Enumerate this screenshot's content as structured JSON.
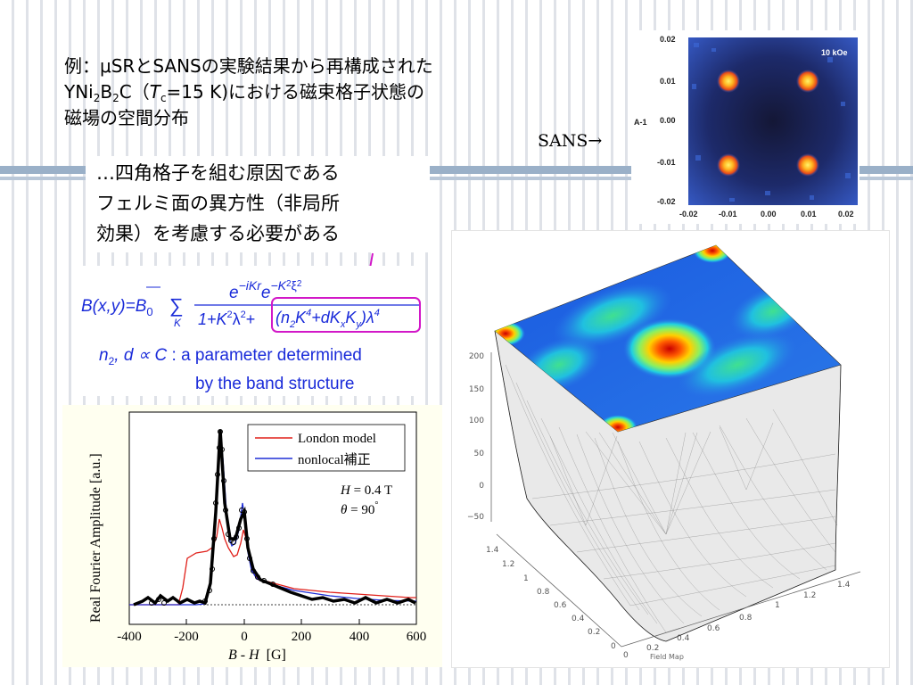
{
  "slide": {
    "title": {
      "line1": "例：μSRとSANSの実験結果から再構成された",
      "line2_part1": "YNi",
      "line2_sub1": "2",
      "line2_part2": "B",
      "line2_sub2": "2",
      "line2_part3": "C（",
      "line2_tc": "T",
      "line2_tc_sub": "c",
      "line2_part4": "=15 K)における磁束格子状態の",
      "line3": "磁場の空間分布"
    },
    "sans_arrow_label": "SANS→",
    "note": {
      "line1": "…四角格子を組む原因である",
      "line2": "フェルミ面の異方性（非局所",
      "line3": "効果）を考慮する必要がある"
    }
  },
  "formula": {
    "lhs": "B(x,y)=B",
    "lhs_sub": "0",
    "sum_sub": "K",
    "numerator": "e",
    "num_exp1": "−iKr",
    "num_exp2": "e",
    "num_exp3": "−K",
    "num_exp4": "2",
    "num_exp5": "ξ",
    "num_exp6": "2",
    "denom_part1": "1+K",
    "denom_sup1": "2",
    "denom_part2": "λ",
    "denom_sup2": "2",
    "denom_plus": "+",
    "nonlocal_term": "(n",
    "nonlocal_sub": "2",
    "nonlocal_mid": "K",
    "nonlocal_sup": "4",
    "nonlocal_d": "+dK",
    "nonlocal_sub_x": "x",
    "nonlocal_k2": "K",
    "nonlocal_sub_y": "y",
    "nonlocal_close": ")λ",
    "nonlocal_sup2": "4",
    "param_line1_var": "n",
    "param_line1_sub": "2",
    "param_line1_rest": ", d ∝ C",
    "param_line1_text": " : a parameter determined",
    "param_line2": "by the band structure"
  },
  "sans_plot": {
    "field_label": "10 kOe",
    "y_axis_label": "A-1",
    "y_ticks": [
      "0.02",
      "0.01",
      "0.00",
      "-0.01",
      "-0.02"
    ],
    "x_ticks": [
      "-0.02",
      "-0.01",
      "0.00",
      "0.01",
      "0.02"
    ],
    "colors": {
      "background": "#1a1f4a",
      "mid": "#2e4fb8",
      "spot_core": "#ffcc33",
      "spot_ring": "#ff6a1a"
    }
  },
  "fourier_plot": {
    "y_axis_label": "Real Fourier Amplitude [a.u.]",
    "x_axis_label_var1": "B",
    "x_axis_label_sep": " - ",
    "x_axis_label_var2": "H",
    "x_axis_label_unit": "[G]",
    "x_ticks": [
      "-400",
      "-200",
      "0",
      "200",
      "400",
      "600"
    ],
    "legend": [
      {
        "label": "London model",
        "color": "#e0201a"
      },
      {
        "label": "nonlocal補正",
        "color": "#1f2fd6"
      }
    ],
    "condition_H": "H",
    "condition_H_val": " = 0.4 T",
    "condition_theta": "θ",
    "condition_theta_val": " = 90",
    "condition_theta_deg": "°"
  },
  "field_map": {
    "z_ticks": [
      "200",
      "150",
      "100",
      "50",
      "0",
      "−50"
    ],
    "left_ticks": [
      "1.4",
      "1.2",
      "1",
      "0.8",
      "0.6",
      "0.4",
      "0.2",
      "0"
    ],
    "right_ticks": [
      "0",
      "0.2",
      "0.4",
      "0.6",
      "0.8",
      "1",
      "1.2",
      "1.4"
    ],
    "caption": "Field Map"
  },
  "colors": {
    "formula_blue": "#1a2bd9",
    "highlight_magenta": "#d218c8",
    "nonlocal_blue": "#1f2fd6",
    "london_red": "#e0201a"
  }
}
